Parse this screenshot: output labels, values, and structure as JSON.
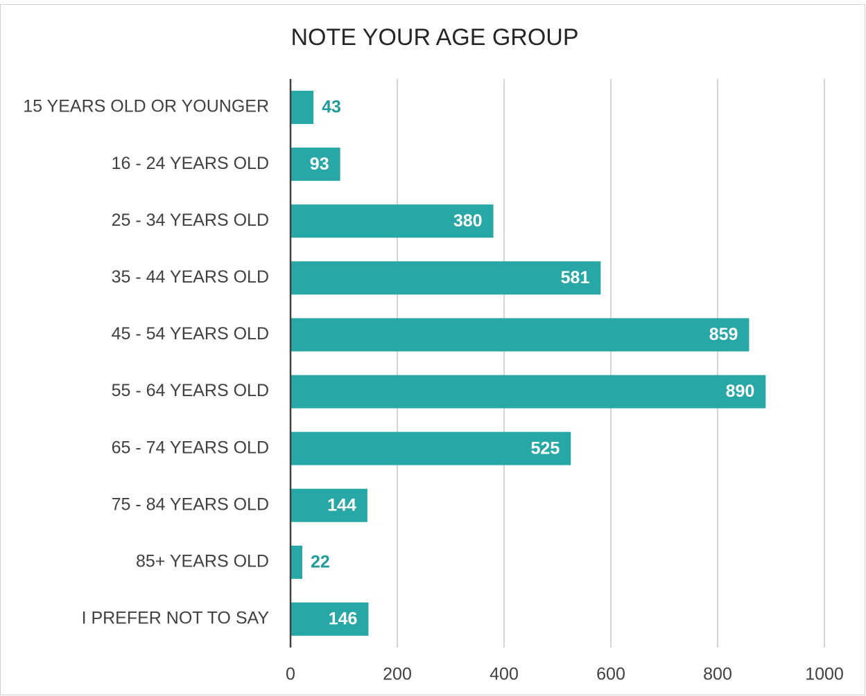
{
  "chart_data": {
    "type": "bar",
    "orientation": "horizontal",
    "title": "NOTE YOUR AGE GROUP",
    "categories": [
      "15 YEARS OLD OR YOUNGER",
      "16 - 24 YEARS OLD",
      "25 - 34 YEARS OLD",
      "35 - 44 YEARS OLD",
      "45 - 54 YEARS OLD",
      "55 - 64 YEARS OLD",
      "65 - 74 YEARS OLD",
      "75 - 84 YEARS OLD",
      "85+ YEARS OLD",
      "I PREFER NOT TO SAY"
    ],
    "values": [
      43,
      93,
      380,
      581,
      859,
      890,
      525,
      144,
      22,
      146
    ],
    "color": "#27a8a7",
    "label_color": "#1f9c9b",
    "xlim": [
      0,
      1000
    ],
    "xticks": [
      0,
      200,
      400,
      600,
      800,
      1000
    ],
    "grid": true
  }
}
